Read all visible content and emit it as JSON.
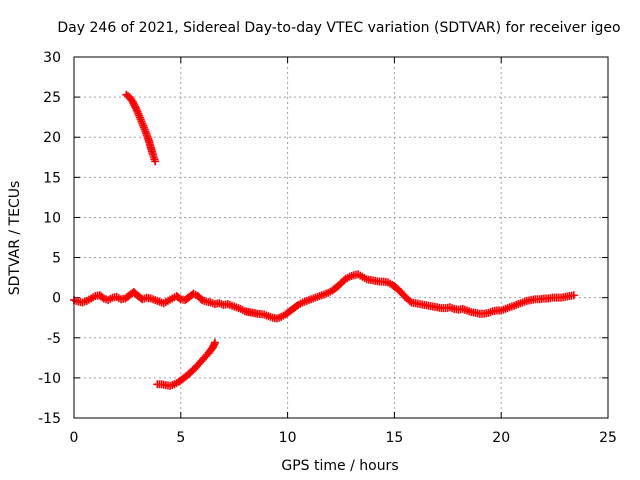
{
  "chart_data": {
    "type": "scatter",
    "title": "Day 246 of 2021, Sidereal Day-to-day VTEC variation (SDTVAR) for receiver igeo",
    "xlabel": "GPS time / hours",
    "ylabel": "SDTVAR / TECUs",
    "xlim": [
      0,
      25
    ],
    "ylim": [
      -15,
      30
    ],
    "xticks": [
      0,
      5,
      10,
      15,
      20,
      25
    ],
    "yticks": [
      -15,
      -10,
      -5,
      0,
      5,
      10,
      15,
      20,
      25,
      30
    ],
    "grid": true,
    "marker": "plus",
    "color": "#ff0000",
    "series": [
      {
        "name": "main",
        "points": [
          [
            0.0,
            -0.3
          ],
          [
            0.2,
            -0.5
          ],
          [
            0.4,
            -0.6
          ],
          [
            0.6,
            -0.4
          ],
          [
            0.8,
            -0.1
          ],
          [
            1.0,
            0.2
          ],
          [
            1.2,
            0.3
          ],
          [
            1.4,
            -0.1
          ],
          [
            1.6,
            -0.3
          ],
          [
            1.8,
            0.0
          ],
          [
            2.0,
            0.1
          ],
          [
            2.2,
            -0.2
          ],
          [
            2.4,
            -0.1
          ],
          [
            2.6,
            0.3
          ],
          [
            2.8,
            0.7
          ],
          [
            3.0,
            0.2
          ],
          [
            3.2,
            -0.2
          ],
          [
            3.4,
            0.0
          ],
          [
            3.6,
            -0.1
          ],
          [
            3.8,
            -0.3
          ],
          [
            4.0,
            -0.5
          ],
          [
            4.2,
            -0.7
          ],
          [
            4.4,
            -0.4
          ],
          [
            4.6,
            -0.1
          ],
          [
            4.8,
            0.2
          ],
          [
            5.0,
            -0.2
          ],
          [
            5.2,
            -0.3
          ],
          [
            5.4,
            0.1
          ],
          [
            5.6,
            0.5
          ],
          [
            5.8,
            0.2
          ],
          [
            6.0,
            -0.3
          ],
          [
            6.2,
            -0.5
          ],
          [
            6.4,
            -0.6
          ],
          [
            6.6,
            -0.8
          ],
          [
            6.8,
            -0.7
          ],
          [
            7.0,
            -0.9
          ],
          [
            7.2,
            -0.8
          ],
          [
            7.4,
            -1.0
          ],
          [
            7.6,
            -1.2
          ],
          [
            7.8,
            -1.4
          ],
          [
            8.0,
            -1.7
          ],
          [
            8.6,
            -2.0
          ],
          [
            8.9,
            -2.1
          ],
          [
            9.1,
            -2.3
          ],
          [
            9.3,
            -2.5
          ],
          [
            9.5,
            -2.6
          ],
          [
            9.7,
            -2.4
          ],
          [
            9.9,
            -2.1
          ],
          [
            10.1,
            -1.7
          ],
          [
            10.3,
            -1.3
          ],
          [
            10.5,
            -0.9
          ],
          [
            10.7,
            -0.6
          ],
          [
            10.9,
            -0.4
          ],
          [
            11.1,
            -0.2
          ],
          [
            11.3,
            0.0
          ],
          [
            11.5,
            0.2
          ],
          [
            11.7,
            0.4
          ],
          [
            11.9,
            0.6
          ],
          [
            12.1,
            0.9
          ],
          [
            12.3,
            1.3
          ],
          [
            12.5,
            1.8
          ],
          [
            12.7,
            2.3
          ],
          [
            12.9,
            2.6
          ],
          [
            13.1,
            2.8
          ],
          [
            13.3,
            2.9
          ],
          [
            13.5,
            2.6
          ],
          [
            13.7,
            2.3
          ],
          [
            13.9,
            2.2
          ],
          [
            14.1,
            2.1
          ],
          [
            14.3,
            2.0
          ],
          [
            14.5,
            2.0
          ],
          [
            14.7,
            1.9
          ],
          [
            14.9,
            1.6
          ],
          [
            15.1,
            1.2
          ],
          [
            15.3,
            0.7
          ],
          [
            15.5,
            0.1
          ],
          [
            15.8,
            -0.6
          ],
          [
            16.0,
            -0.7
          ],
          [
            16.2,
            -0.8
          ],
          [
            16.4,
            -0.9
          ],
          [
            16.6,
            -1.0
          ],
          [
            16.8,
            -1.1
          ],
          [
            17.0,
            -1.2
          ],
          [
            17.2,
            -1.3
          ],
          [
            17.4,
            -1.3
          ],
          [
            17.6,
            -1.2
          ],
          [
            17.8,
            -1.4
          ],
          [
            18.0,
            -1.5
          ],
          [
            18.2,
            -1.4
          ],
          [
            18.4,
            -1.6
          ],
          [
            18.6,
            -1.8
          ],
          [
            18.8,
            -1.9
          ],
          [
            19.0,
            -2.0
          ],
          [
            19.2,
            -2.0
          ],
          [
            19.4,
            -1.9
          ],
          [
            19.6,
            -1.7
          ],
          [
            19.8,
            -1.6
          ],
          [
            20.0,
            -1.6
          ],
          [
            20.2,
            -1.4
          ],
          [
            20.4,
            -1.2
          ],
          [
            20.6,
            -1.0
          ],
          [
            20.8,
            -0.8
          ],
          [
            21.0,
            -0.6
          ],
          [
            21.2,
            -0.4
          ],
          [
            21.4,
            -0.3
          ],
          [
            21.6,
            -0.2
          ],
          [
            21.8,
            -0.2
          ],
          [
            22.0,
            -0.1
          ],
          [
            22.2,
            -0.1
          ],
          [
            22.4,
            0.0
          ],
          [
            22.6,
            0.0
          ],
          [
            22.8,
            0.0
          ],
          [
            23.0,
            0.1
          ],
          [
            23.2,
            0.2
          ],
          [
            23.4,
            0.3
          ]
        ]
      },
      {
        "name": "upper-arc",
        "points": [
          [
            2.45,
            25.3
          ],
          [
            2.6,
            25.0
          ],
          [
            2.75,
            24.4
          ],
          [
            2.9,
            23.6
          ],
          [
            3.05,
            22.7
          ],
          [
            3.2,
            21.7
          ],
          [
            3.35,
            20.7
          ],
          [
            3.5,
            19.6
          ],
          [
            3.6,
            18.7
          ],
          [
            3.7,
            17.8
          ],
          [
            3.8,
            17.0
          ]
        ]
      },
      {
        "name": "lower-arc",
        "points": [
          [
            3.9,
            -10.8
          ],
          [
            4.1,
            -10.8
          ],
          [
            4.3,
            -10.9
          ],
          [
            4.5,
            -11.0
          ],
          [
            4.7,
            -10.8
          ],
          [
            4.9,
            -10.5
          ],
          [
            5.1,
            -10.1
          ],
          [
            5.3,
            -9.7
          ],
          [
            5.5,
            -9.2
          ],
          [
            5.7,
            -8.7
          ],
          [
            5.9,
            -8.1
          ],
          [
            6.1,
            -7.5
          ],
          [
            6.3,
            -6.9
          ],
          [
            6.5,
            -6.2
          ],
          [
            6.6,
            -5.6
          ]
        ]
      }
    ]
  }
}
